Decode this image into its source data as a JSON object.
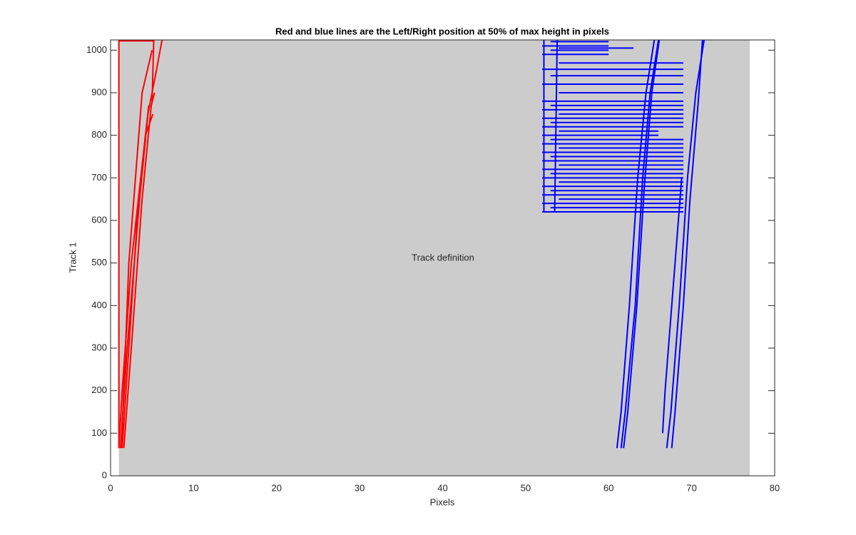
{
  "chart_data": {
    "type": "line",
    "title": "Red and blue lines are the Left/Right position at 50% of max height in pixels",
    "xlabel": "Pixels",
    "ylabel": "Track 1",
    "annotation": "Track definition",
    "xlim": [
      0,
      80
    ],
    "ylim": [
      0,
      1024
    ],
    "xticks": [
      0,
      10,
      20,
      30,
      40,
      50,
      60,
      70,
      80
    ],
    "yticks": [
      0,
      100,
      200,
      300,
      400,
      500,
      600,
      700,
      800,
      900,
      1000
    ],
    "region": {
      "x": [
        1,
        77
      ],
      "y": [
        0,
        1024
      ],
      "color": "#cccccc"
    },
    "series": [
      {
        "color": "#ff0000",
        "x": [
          1.0,
          1.0,
          5.2,
          5.0
        ],
        "y": [
          65,
          1022,
          1022,
          880
        ]
      },
      {
        "color": "#ff0000",
        "x": [
          1.2,
          2.0,
          3.5,
          4.5,
          5.5,
          6.2
        ],
        "y": [
          65,
          300,
          650,
          850,
          950,
          1024
        ]
      },
      {
        "color": "#ff0000",
        "x": [
          1.6,
          2.5,
          3.8,
          4.9,
          5.3
        ],
        "y": [
          65,
          300,
          650,
          870,
          900
        ]
      },
      {
        "color": "#ff0000",
        "x": [
          1.3,
          1.8,
          2.2,
          3.8,
          5.0
        ],
        "y": [
          65,
          300,
          500,
          900,
          1000
        ]
      },
      {
        "color": "#ff0000",
        "x": [
          1.0,
          1.4,
          2.5,
          4.6
        ],
        "y": [
          65,
          200,
          500,
          870
        ]
      },
      {
        "color": "#ff0000",
        "x": [
          1.4,
          2.2,
          3.2,
          4.2,
          5.1
        ],
        "y": [
          65,
          300,
          600,
          800,
          850
        ]
      },
      {
        "color": "#0000ff",
        "x": [
          61.0,
          61.5,
          62.5,
          63.5,
          64.5,
          65.5
        ],
        "y": [
          65,
          150,
          400,
          700,
          900,
          1024
        ]
      },
      {
        "color": "#0000ff",
        "x": [
          61.5,
          62.0,
          63.2,
          64.1,
          65.0,
          66.0
        ],
        "y": [
          65,
          150,
          400,
          700,
          900,
          1024
        ]
      },
      {
        "color": "#0000ff",
        "x": [
          61.8,
          62.3,
          63.4,
          64.3,
          65.2,
          66.1
        ],
        "y": [
          65,
          150,
          400,
          680,
          900,
          1024
        ]
      },
      {
        "color": "#0000ff",
        "x": [
          67.0,
          67.5,
          68.5,
          69.5,
          70.5,
          71.5
        ],
        "y": [
          65,
          150,
          400,
          700,
          900,
          1024
        ]
      },
      {
        "color": "#0000ff",
        "x": [
          67.6,
          68.0,
          69.0,
          69.8,
          70.8,
          71.3
        ],
        "y": [
          65,
          150,
          400,
          650,
          880,
          1024
        ]
      },
      {
        "color": "#0000ff",
        "x": [
          66.5,
          66.8,
          67.8,
          68.8
        ],
        "y": [
          100,
          200,
          450,
          700
        ]
      },
      {
        "color": "#0000ff",
        "x": [
          52.2,
          52.2
        ],
        "y": [
          620,
          1024
        ]
      },
      {
        "color": "#0000ff",
        "x": [
          53.5,
          53.8
        ],
        "y": [
          620,
          1024
        ]
      }
    ],
    "hlines": {
      "color": "#0000ff",
      "y": [
        620,
        630,
        640,
        650,
        660,
        670,
        680,
        690,
        700,
        710,
        720,
        730,
        740,
        750,
        760,
        770,
        780,
        790,
        800,
        810,
        820,
        830,
        840,
        850,
        860,
        870,
        880,
        900,
        920,
        940,
        955,
        970,
        990,
        1000,
        1005,
        1010,
        1020
      ],
      "x0": [
        52,
        53,
        52,
        54,
        52,
        53,
        52,
        54,
        52,
        53,
        52,
        54,
        52,
        53,
        52,
        54,
        52,
        53,
        52,
        54,
        52,
        53,
        52,
        54,
        52,
        53,
        52,
        54,
        52,
        53,
        52,
        54,
        52,
        53,
        54,
        52,
        53
      ],
      "x1": [
        69,
        69,
        69,
        69,
        69,
        69,
        69,
        69,
        69,
        69,
        69,
        69,
        69,
        69,
        69,
        69,
        69,
        69,
        66,
        66,
        69,
        69,
        69,
        69,
        69,
        69,
        69,
        69,
        69,
        69,
        69,
        69,
        60,
        60,
        63,
        60,
        60
      ]
    }
  }
}
